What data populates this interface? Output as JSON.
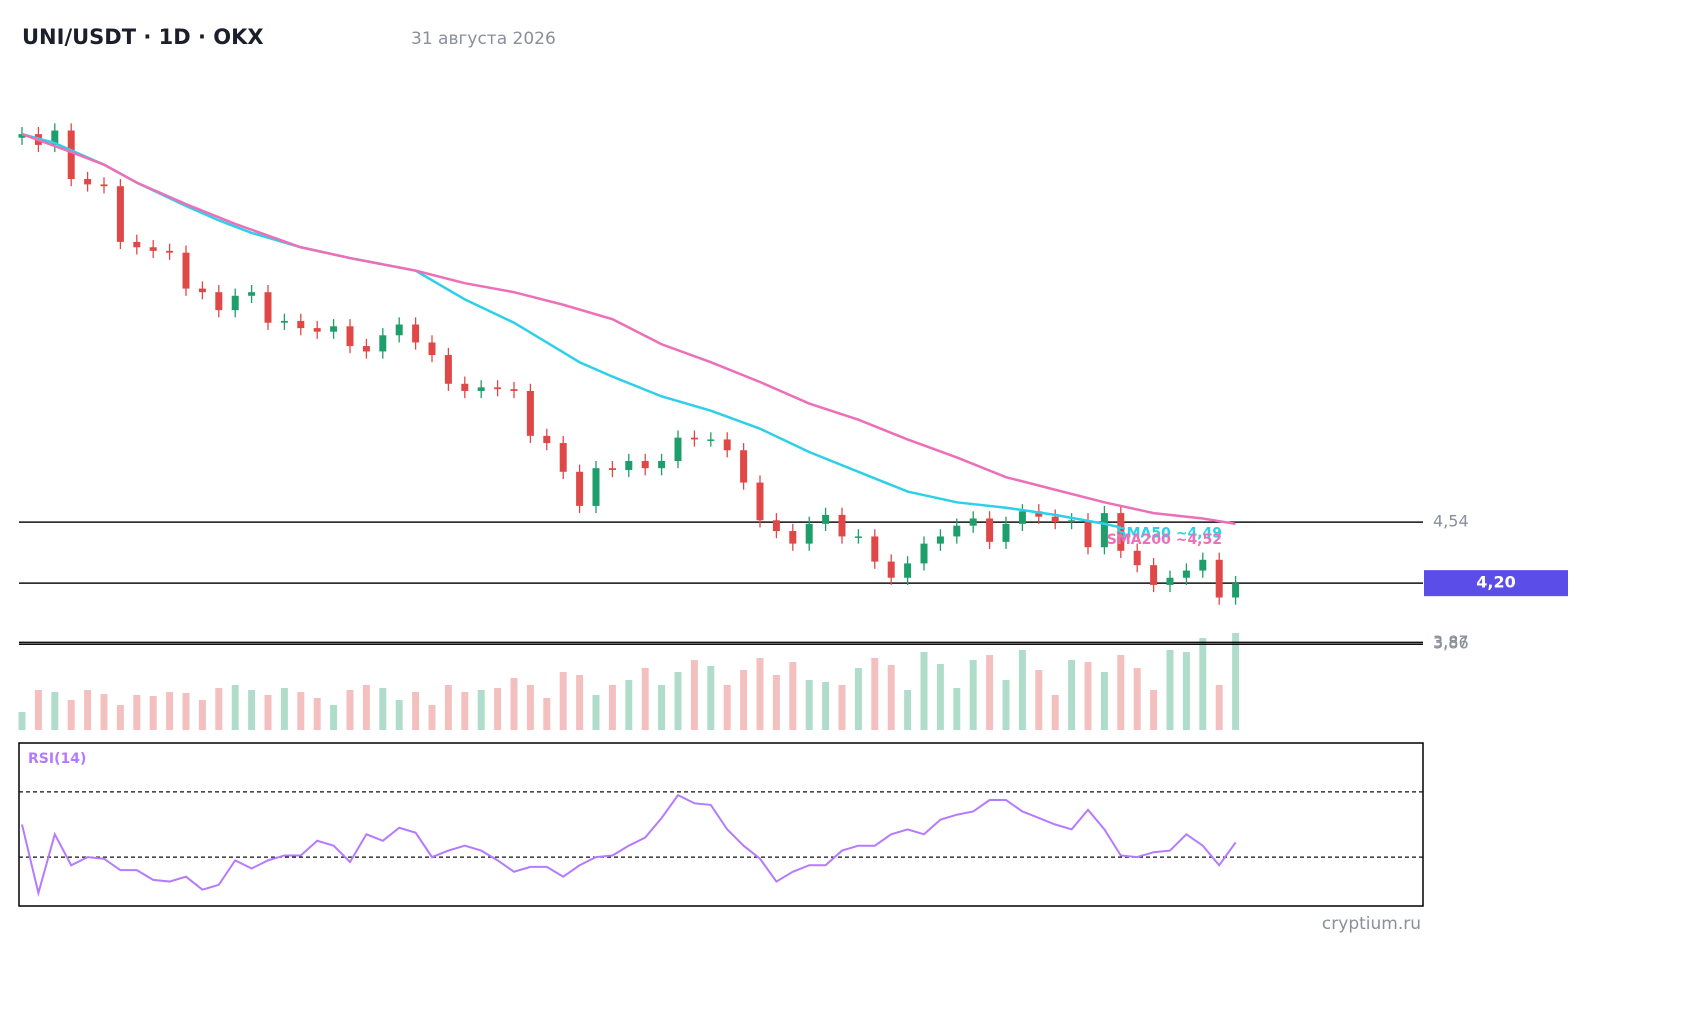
{
  "header": {
    "title": "UNI/USDT · 1D · OKX",
    "date": "31 августа 2026"
  },
  "chart_data": {
    "type": "candlestick",
    "up_color": "#1e9e6a",
    "down_color": "#e04848",
    "open": [
      6.68,
      6.7,
      6.64,
      6.72,
      6.45,
      6.42,
      6.41,
      6.1,
      6.07,
      6.05,
      6.04,
      5.84,
      5.82,
      5.72,
      5.8,
      5.82,
      5.65,
      5.66,
      5.62,
      5.6,
      5.63,
      5.52,
      5.49,
      5.58,
      5.64,
      5.54,
      5.47,
      5.31,
      5.27,
      5.29,
      5.28,
      5.27,
      5.02,
      4.98,
      4.82,
      4.63,
      4.84,
      4.83,
      4.88,
      4.84,
      4.88,
      5.01,
      5.0,
      5.0,
      4.94,
      4.76,
      4.55,
      4.49,
      4.42,
      4.53,
      4.58,
      4.46,
      4.46,
      4.32,
      4.23,
      4.31,
      4.42,
      4.46,
      4.52,
      4.56,
      4.43,
      4.53,
      4.6,
      4.57,
      4.54,
      4.55,
      4.4,
      4.59,
      4.38,
      4.3,
      4.19,
      4.23,
      4.27,
      4.33,
      4.12
    ],
    "high": [
      6.74,
      6.74,
      6.76,
      6.76,
      6.49,
      6.46,
      6.45,
      6.14,
      6.11,
      6.09,
      6.08,
      5.88,
      5.86,
      5.84,
      5.86,
      5.86,
      5.7,
      5.7,
      5.66,
      5.67,
      5.67,
      5.56,
      5.62,
      5.68,
      5.68,
      5.58,
      5.51,
      5.35,
      5.33,
      5.33,
      5.32,
      5.31,
      5.06,
      5.02,
      4.86,
      4.88,
      4.88,
      4.92,
      4.92,
      4.92,
      5.05,
      5.05,
      5.04,
      5.04,
      4.98,
      4.8,
      4.59,
      4.53,
      4.57,
      4.62,
      4.62,
      4.5,
      4.5,
      4.36,
      4.35,
      4.46,
      4.5,
      4.56,
      4.6,
      4.6,
      4.57,
      4.64,
      4.64,
      4.61,
      4.59,
      4.59,
      4.63,
      4.63,
      4.42,
      4.34,
      4.27,
      4.31,
      4.37,
      4.37,
      4.24
    ],
    "low": [
      6.64,
      6.6,
      6.6,
      6.41,
      6.38,
      6.37,
      6.06,
      6.03,
      6.01,
      6.0,
      5.8,
      5.78,
      5.68,
      5.68,
      5.76,
      5.61,
      5.61,
      5.58,
      5.56,
      5.56,
      5.48,
      5.45,
      5.45,
      5.54,
      5.5,
      5.43,
      5.27,
      5.23,
      5.23,
      5.24,
      5.23,
      4.98,
      4.94,
      4.78,
      4.59,
      4.59,
      4.79,
      4.79,
      4.8,
      4.8,
      4.84,
      4.96,
      4.96,
      4.9,
      4.72,
      4.51,
      4.45,
      4.38,
      4.38,
      4.49,
      4.42,
      4.42,
      4.28,
      4.19,
      4.19,
      4.27,
      4.38,
      4.42,
      4.48,
      4.39,
      4.39,
      4.49,
      4.53,
      4.5,
      4.5,
      4.36,
      4.36,
      4.34,
      4.26,
      4.15,
      4.15,
      4.19,
      4.23,
      4.08,
      4.08
    ],
    "close": [
      6.7,
      6.64,
      6.72,
      6.45,
      6.42,
      6.41,
      6.1,
      6.07,
      6.05,
      6.04,
      5.84,
      5.82,
      5.72,
      5.8,
      5.82,
      5.65,
      5.66,
      5.62,
      5.6,
      5.63,
      5.52,
      5.49,
      5.58,
      5.64,
      5.54,
      5.47,
      5.31,
      5.27,
      5.29,
      5.28,
      5.27,
      5.02,
      4.98,
      4.82,
      4.63,
      4.84,
      4.83,
      4.88,
      4.84,
      4.88,
      5.01,
      5.0,
      5.0,
      4.94,
      4.76,
      4.55,
      4.49,
      4.42,
      4.53,
      4.58,
      4.46,
      4.46,
      4.32,
      4.23,
      4.31,
      4.42,
      4.46,
      4.52,
      4.56,
      4.43,
      4.53,
      4.6,
      4.57,
      4.54,
      4.55,
      4.4,
      4.59,
      4.38,
      4.3,
      4.19,
      4.23,
      4.27,
      4.33,
      4.12,
      4.2
    ],
    "ylim": [
      3.85,
      6.89
    ],
    "levels": [
      {
        "value": 4.54,
        "label": "4,54"
      },
      {
        "value": 3.87,
        "label": "3,87"
      },
      {
        "value": 3.86,
        "label": "3,86"
      }
    ],
    "last_price": {
      "value": 4.2,
      "label": "4,20",
      "color": "#5b4de8"
    },
    "overlays": [
      {
        "name": "SMA50 ~4,49",
        "color": "#2dd0e8",
        "x": [
          0,
          2,
          4,
          5,
          7,
          10,
          12,
          14,
          17,
          20,
          24,
          27,
          30,
          32,
          34,
          36,
          39,
          42,
          45,
          48,
          51,
          54,
          57,
          60,
          63,
          66,
          67
        ],
        "values": [
          6.7,
          6.65,
          6.57,
          6.53,
          6.43,
          6.3,
          6.22,
          6.15,
          6.07,
          6.01,
          5.94,
          5.78,
          5.65,
          5.54,
          5.43,
          5.35,
          5.24,
          5.16,
          5.06,
          4.93,
          4.82,
          4.71,
          4.65,
          4.62,
          4.58,
          4.53,
          4.51
        ]
      },
      {
        "name": "SMA200 ~4,52",
        "color": "#ec6fb8",
        "x": [
          0,
          3,
          5,
          7,
          10,
          13,
          17,
          20,
          24,
          27,
          30,
          33,
          36,
          39,
          42,
          45,
          48,
          51,
          54,
          57,
          60,
          63,
          66,
          69,
          72,
          74
        ],
        "values": [
          6.7,
          6.6,
          6.53,
          6.43,
          6.31,
          6.2,
          6.07,
          6.01,
          5.94,
          5.87,
          5.82,
          5.75,
          5.67,
          5.53,
          5.43,
          5.32,
          5.2,
          5.11,
          5.0,
          4.9,
          4.79,
          4.72,
          4.65,
          4.59,
          4.56,
          4.53
        ]
      }
    ],
    "volume": {
      "ylim": [
        0,
        100
      ],
      "values": [
        18,
        40,
        38,
        30,
        40,
        36,
        25,
        35,
        34,
        38,
        37,
        30,
        42,
        45,
        40,
        35,
        42,
        38,
        32,
        25,
        40,
        45,
        42,
        30,
        38,
        25,
        45,
        38,
        40,
        42,
        52,
        45,
        32,
        58,
        55,
        35,
        45,
        50,
        62,
        45,
        58,
        70,
        64,
        45,
        60,
        72,
        55,
        68,
        50,
        48,
        45,
        62,
        72,
        65,
        40,
        78,
        66,
        42,
        70,
        75,
        50,
        80,
        60,
        35,
        70,
        68,
        58,
        75,
        62,
        40,
        80,
        78,
        92,
        45,
        97
      ]
    },
    "rsi": {
      "title": "RSI(14)",
      "color": "#b57bff",
      "ylim": [
        0,
        100
      ],
      "levels": [
        70,
        30
      ],
      "values": [
        50,
        8,
        44,
        25,
        30,
        29,
        22,
        22,
        16,
        15,
        18,
        10,
        13,
        28,
        23,
        28,
        31,
        31,
        40,
        37,
        27,
        44,
        40,
        48,
        45,
        30,
        34,
        37,
        34,
        28,
        21,
        24,
        24,
        18,
        25,
        30,
        31,
        37,
        42,
        54,
        68,
        63,
        62,
        47,
        37,
        29,
        15,
        21,
        25,
        25,
        34,
        37,
        37,
        44,
        47,
        44,
        53,
        56,
        58,
        65,
        65,
        58,
        54,
        50,
        47,
        59,
        47,
        31,
        30,
        33,
        34,
        44,
        37,
        25,
        39
      ]
    }
  },
  "watermark": "cryptium.ru"
}
